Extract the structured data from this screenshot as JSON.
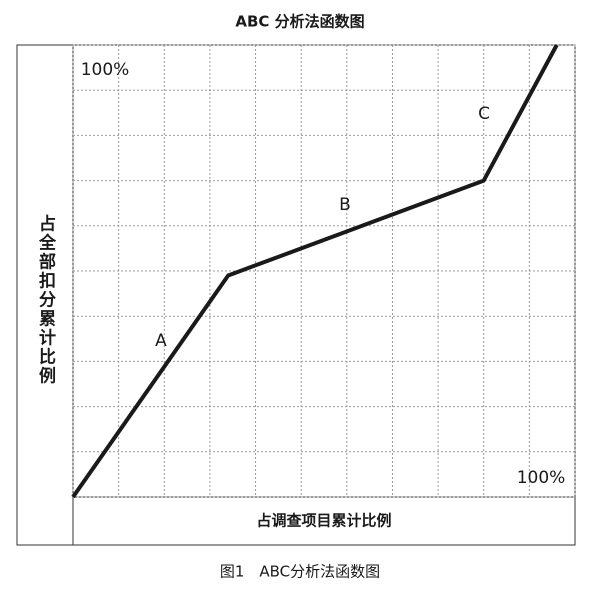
{
  "chart_data": {
    "type": "line",
    "title": "ABC 分析法函数图",
    "xlabel": "占调查项目累计比例",
    "ylabel": "占全部扣分累计比例",
    "caption": "图1　ABC分析法函数图",
    "annotations": [
      "100%",
      "100%",
      "A",
      "B",
      "C"
    ],
    "x": [
      0,
      34,
      90,
      106
    ],
    "series": [
      {
        "color": "#1a1a1a",
        "values": [
          0,
          49,
          70,
          100
        ]
      }
    ],
    "xlim": [
      0,
      110
    ],
    "ylim": [
      0,
      100
    ],
    "xticks": [
      0,
      10,
      20,
      30,
      40,
      50,
      60,
      70,
      80,
      90,
      100,
      110
    ],
    "yticks": [
      0,
      10,
      20,
      30,
      40,
      50,
      60,
      70,
      80,
      90,
      100
    ],
    "grid": true
  }
}
